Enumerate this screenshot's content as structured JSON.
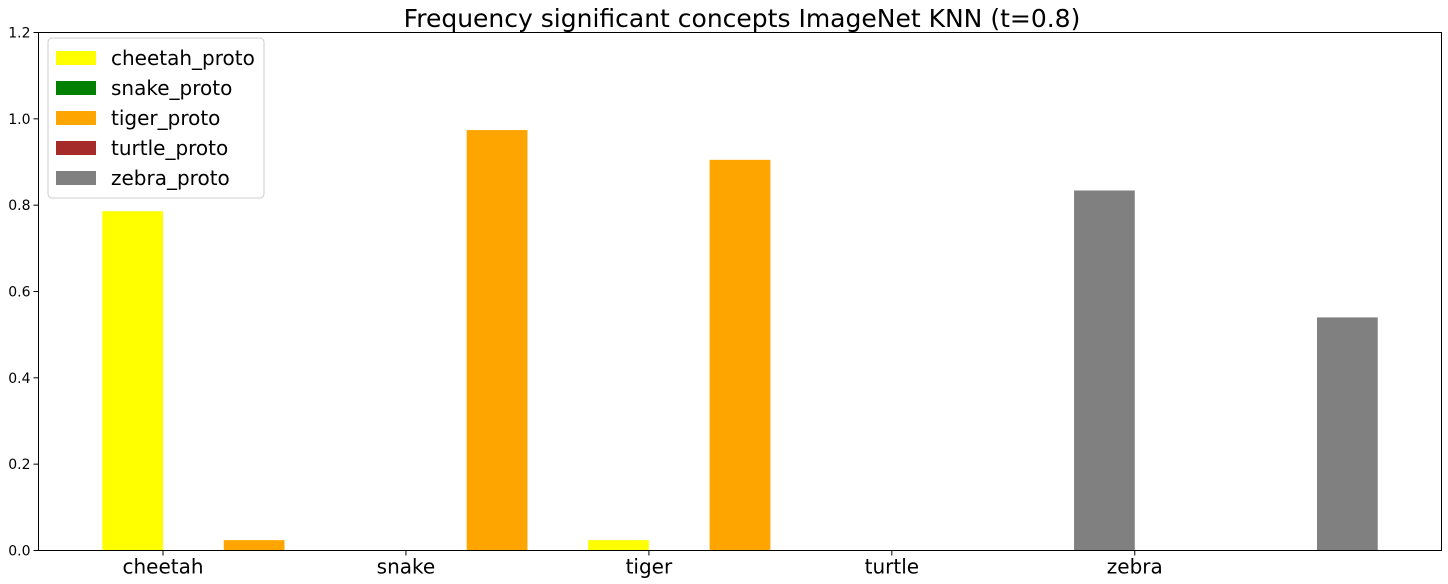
{
  "chart_data": {
    "type": "bar",
    "title": "Frequency significant concepts ImageNet KNN (t=0.8)",
    "categories": [
      "cheetah",
      "snake",
      "tiger",
      "turtle",
      "zebra"
    ],
    "ylim": [
      0,
      1.2
    ],
    "yticks": [
      "0.0",
      "0.2",
      "0.4",
      "0.6",
      "0.8",
      "1.0",
      "1.2"
    ],
    "grid": false,
    "legend_position": "top-left",
    "series": [
      {
        "name": "cheetah_proto",
        "color": "#ffff00",
        "values": [
          0.786,
          0.0,
          0.024,
          0.0,
          0.0
        ]
      },
      {
        "name": "snake_proto",
        "color": "#008000",
        "values": [
          0.0,
          0.0,
          0.0,
          0.0,
          0.0
        ]
      },
      {
        "name": "tiger_proto",
        "color": "#ffa500",
        "values": [
          0.024,
          0.974,
          0.905,
          0.0,
          0.0
        ]
      },
      {
        "name": "turtle_proto",
        "color": "#a52a2a",
        "values": [
          0.0,
          0.0,
          0.0,
          0.0,
          0.0
        ]
      },
      {
        "name": "zebra_proto",
        "color": "#808080",
        "values": [
          0.0,
          0.0,
          0.0,
          0.834,
          0.54
        ]
      }
    ]
  }
}
